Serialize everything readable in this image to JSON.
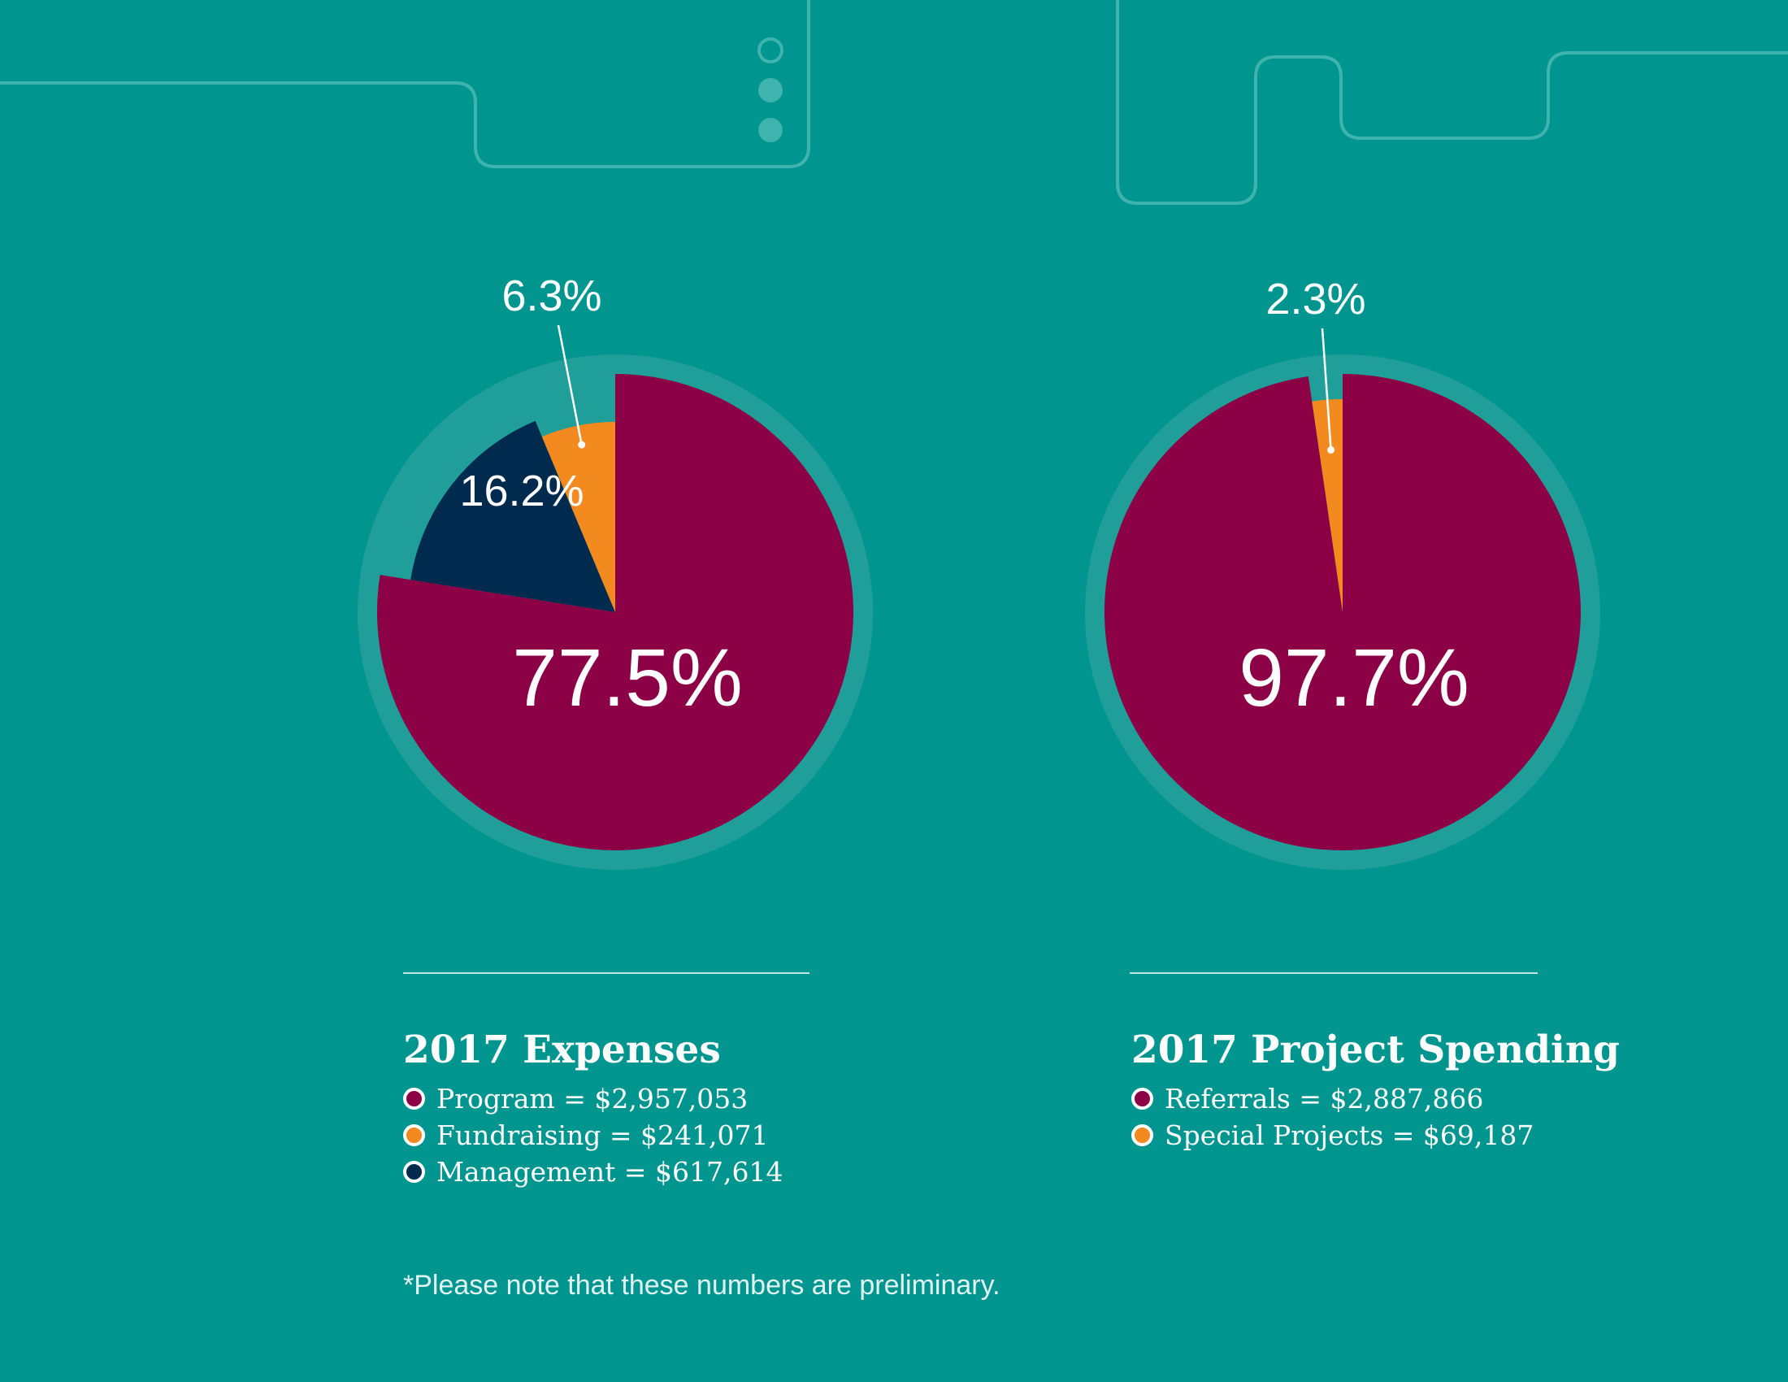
{
  "colors": {
    "background": "#00968f",
    "ring": "#1f9e9a",
    "program": "#8c0046",
    "fundraising": "#f28a1f",
    "management": "#002b4f",
    "referrals": "#8c0046",
    "special_projects": "#f28a1f"
  },
  "chart_data": [
    {
      "type": "pie",
      "title": "2017 Expenses",
      "slices": [
        {
          "label": "Program",
          "value": 2957053,
          "percent": 77.5,
          "percent_label": "77.5%",
          "legend_label": "Program = $2,957,053",
          "color": "#8c0046"
        },
        {
          "label": "Management",
          "value": 617614,
          "percent": 16.2,
          "percent_label": "16.2%",
          "legend_label": "Management = $617,614",
          "color": "#002b4f"
        },
        {
          "label": "Fundraising",
          "value": 241071,
          "percent": 6.3,
          "percent_label": "6.3%",
          "legend_label": "Fundraising = $241,071",
          "color": "#f28a1f"
        }
      ],
      "legend_order": [
        "Program",
        "Fundraising",
        "Management"
      ]
    },
    {
      "type": "pie",
      "title": "2017 Project Spending",
      "slices": [
        {
          "label": "Referrals",
          "value": 2887866,
          "percent": 97.7,
          "percent_label": "97.7%",
          "legend_label": "Referrals = $2,887,866",
          "color": "#8c0046"
        },
        {
          "label": "Special Projects",
          "value": 69187,
          "percent": 2.3,
          "percent_label": "2.3%",
          "legend_label": "Special Projects = $69,187",
          "color": "#f28a1f"
        }
      ],
      "legend_order": [
        "Referrals",
        "Special Projects"
      ]
    }
  ],
  "footnote": "*Please note that these numbers are preliminary."
}
